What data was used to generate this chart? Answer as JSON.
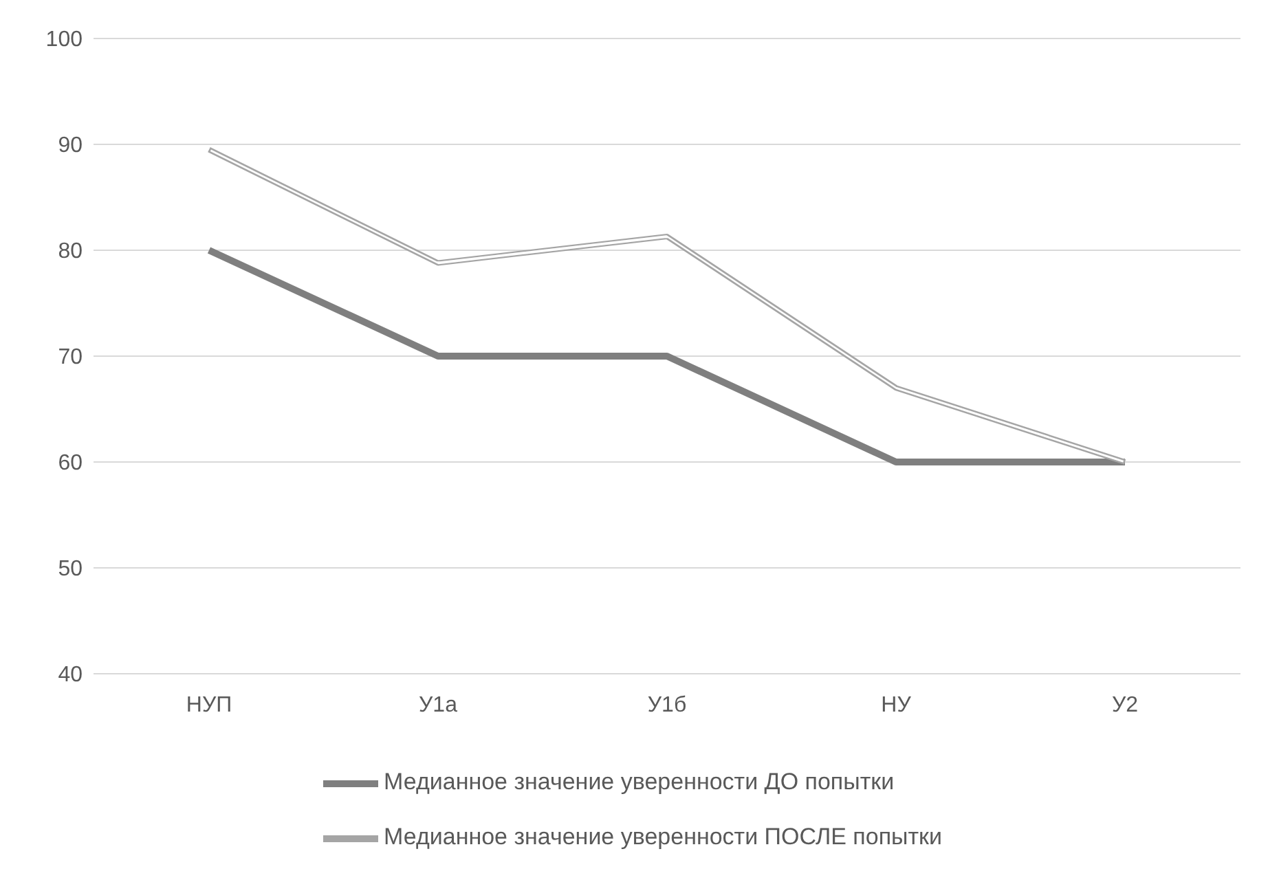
{
  "chart_data": {
    "type": "line",
    "categories": [
      "НУП",
      "У1а",
      "У1б",
      "НУ",
      "У2"
    ],
    "series": [
      {
        "name": "Медианное значение уверенности ДО попытки",
        "color": "#7f7f7f",
        "values": [
          80,
          70,
          70,
          60,
          60
        ]
      },
      {
        "name": "Медианное значение уверенности ПОСЛЕ попытки",
        "color": "#a5a5a5",
        "values": [
          89.5,
          78.8,
          81.3,
          67,
          60
        ]
      }
    ],
    "ylim": [
      40,
      100
    ],
    "yticks": [
      40,
      50,
      60,
      70,
      80,
      90,
      100
    ],
    "grid": "y",
    "legend": "bottom",
    "marker": "none"
  }
}
